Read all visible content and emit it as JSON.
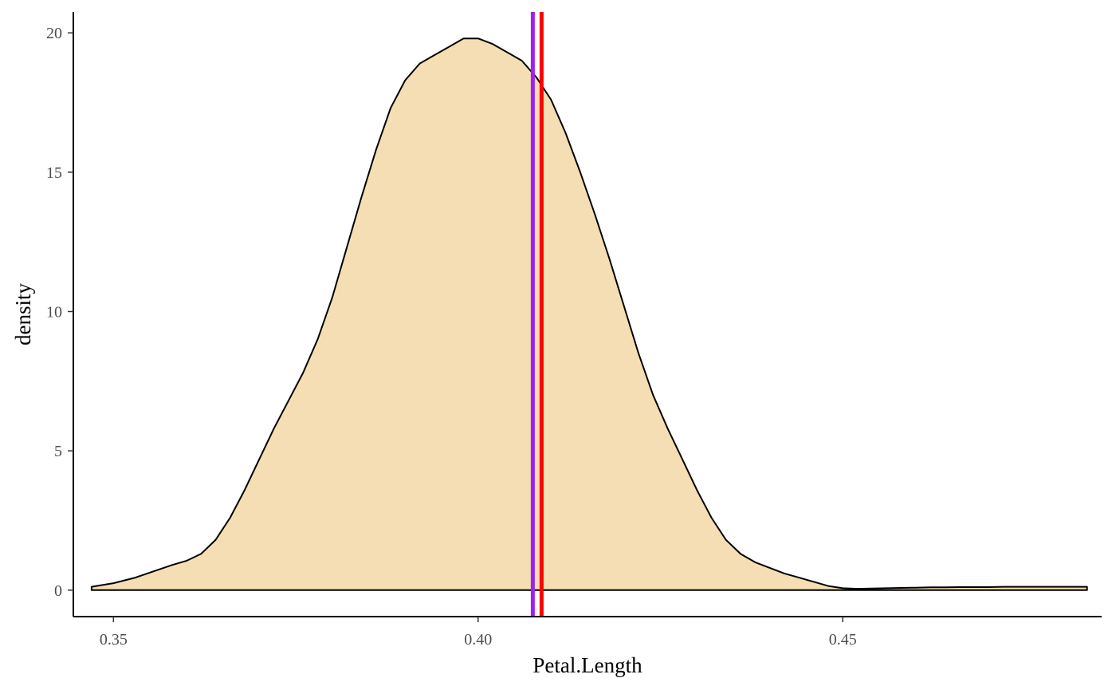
{
  "chart_data": {
    "type": "area",
    "xlabel": "Petal.Length",
    "ylabel": "density",
    "xlim": [
      0.3445,
      0.4855
    ],
    "ylim": [
      -0.95,
      20.75
    ],
    "x_ticks": [
      0.35,
      0.4,
      0.45
    ],
    "x_tick_labels": [
      "0.35",
      "0.40",
      "0.45"
    ],
    "y_ticks": [
      0,
      5,
      10,
      15,
      20
    ],
    "y_tick_labels": [
      "0",
      "5",
      "10",
      "15",
      "20"
    ],
    "grid": false,
    "legend": "none",
    "fill_color": "#F5DEB3",
    "line_color": "#000000",
    "series": [
      {
        "x": [
          0.347,
          0.35,
          0.353,
          0.356,
          0.358,
          0.36,
          0.362,
          0.364,
          0.366,
          0.368,
          0.37,
          0.372,
          0.374,
          0.376,
          0.378,
          0.38,
          0.382,
          0.384,
          0.386,
          0.388,
          0.39,
          0.392,
          0.394,
          0.396,
          0.398,
          0.4,
          0.402,
          0.404,
          0.406,
          0.408,
          0.41,
          0.412,
          0.414,
          0.416,
          0.418,
          0.42,
          0.422,
          0.424,
          0.426,
          0.428,
          0.43,
          0.432,
          0.434,
          0.436,
          0.438,
          0.44,
          0.442,
          0.444,
          0.446,
          0.448,
          0.45,
          0.452,
          0.454,
          0.456,
          0.458,
          0.46,
          0.462,
          0.464,
          0.466,
          0.468,
          0.47,
          0.472,
          0.474,
          0.476,
          0.478,
          0.48,
          0.482,
          0.4835
        ],
        "y": [
          0.12,
          0.25,
          0.45,
          0.72,
          0.9,
          1.05,
          1.3,
          1.8,
          2.6,
          3.6,
          4.7,
          5.8,
          6.8,
          7.8,
          9.0,
          10.5,
          12.3,
          14.1,
          15.8,
          17.3,
          18.3,
          18.9,
          19.2,
          19.5,
          19.8,
          19.8,
          19.6,
          19.3,
          19.0,
          18.4,
          17.6,
          16.4,
          15.0,
          13.5,
          11.9,
          10.2,
          8.5,
          7.0,
          5.8,
          4.7,
          3.6,
          2.6,
          1.8,
          1.3,
          1.0,
          0.8,
          0.6,
          0.45,
          0.3,
          0.15,
          0.07,
          0.05,
          0.06,
          0.07,
          0.08,
          0.09,
          0.1,
          0.1,
          0.11,
          0.11,
          0.11,
          0.12,
          0.12,
          0.12,
          0.12,
          0.12,
          0.12,
          0.12
        ]
      }
    ],
    "vlines": [
      {
        "x": 0.4075,
        "color": "#A020F0"
      },
      {
        "x": 0.4087,
        "color": "#FF0000"
      }
    ]
  }
}
